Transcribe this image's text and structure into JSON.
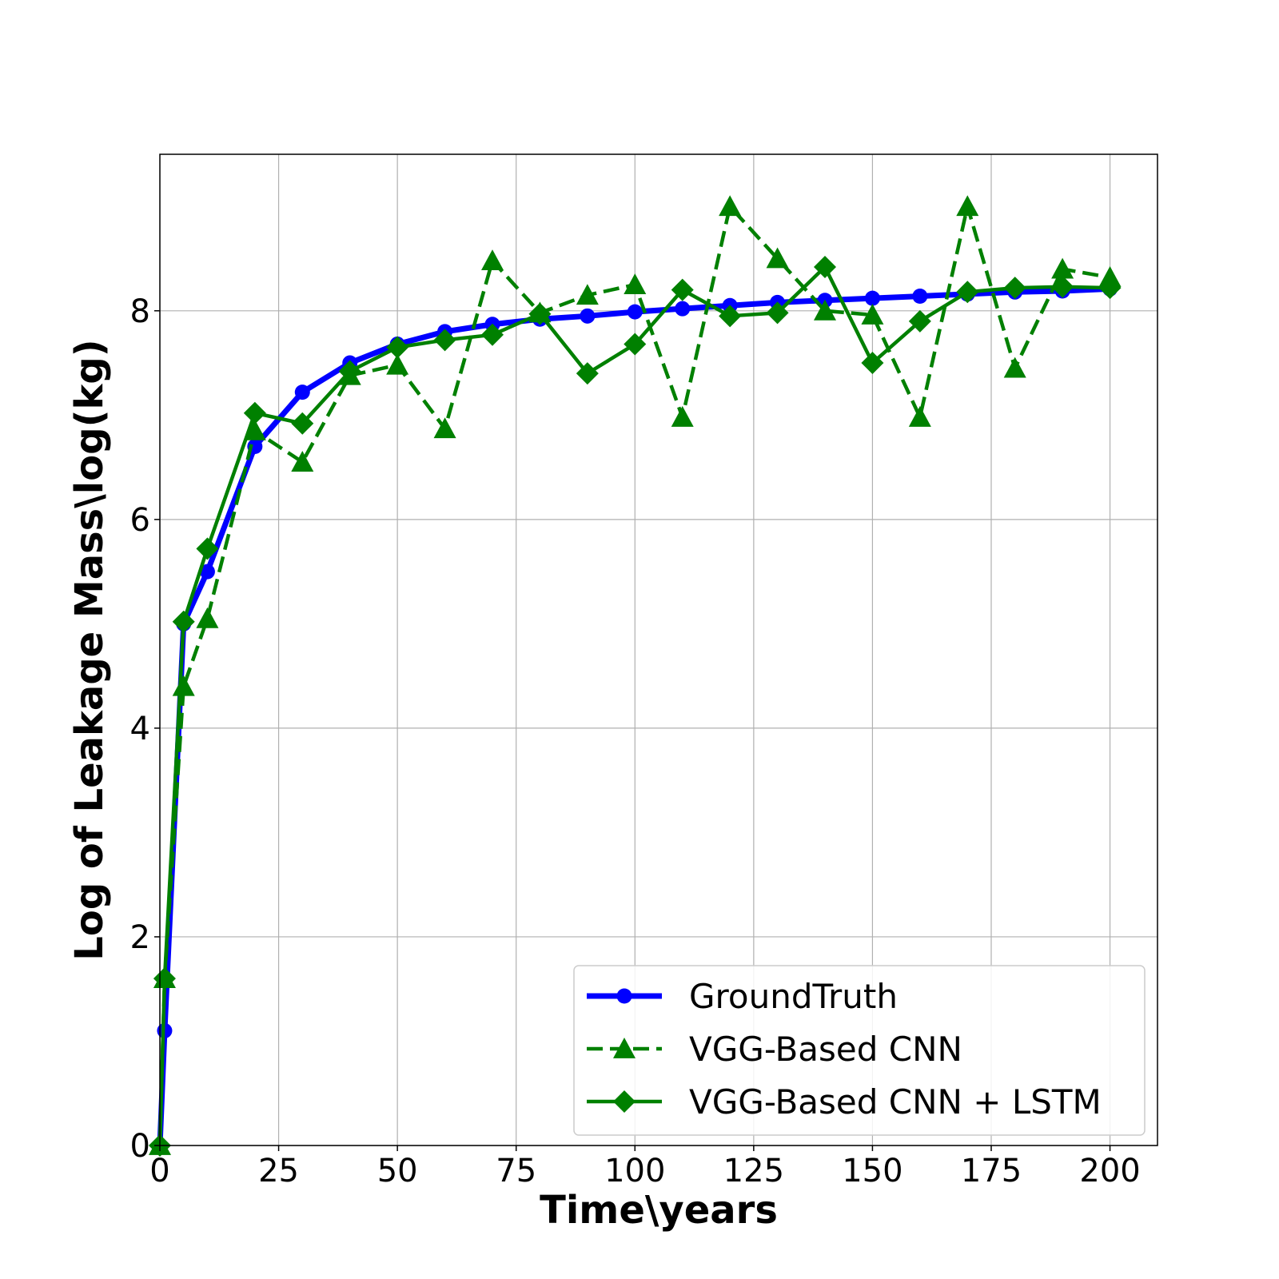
{
  "chart_data": {
    "type": "line",
    "title": "",
    "xlabel": "Time\\years",
    "ylabel": "Log of Leakage Mass\\log(kg)",
    "xlim": [
      0,
      210
    ],
    "ylim": [
      0,
      9.5
    ],
    "xticks": [
      0,
      25,
      50,
      75,
      100,
      125,
      150,
      175,
      200
    ],
    "yticks": [
      0,
      2,
      4,
      6,
      8
    ],
    "grid": true,
    "legend_position": "lower-right",
    "series": [
      {
        "name": "GroundTruth",
        "color": "#0000ff",
        "style": "solid",
        "marker": "circle",
        "x": [
          0,
          1,
          5,
          10,
          20,
          30,
          40,
          50,
          60,
          70,
          80,
          90,
          100,
          110,
          120,
          130,
          140,
          150,
          160,
          170,
          180,
          190,
          200
        ],
        "y": [
          0.0,
          1.1,
          5.0,
          5.5,
          6.7,
          7.22,
          7.5,
          7.68,
          7.8,
          7.87,
          7.92,
          7.95,
          7.99,
          8.02,
          8.05,
          8.08,
          8.1,
          8.12,
          8.14,
          8.16,
          8.18,
          8.19,
          8.21
        ]
      },
      {
        "name": "VGG-Based CNN",
        "color": "#008000",
        "style": "dashed",
        "marker": "triangle",
        "x": [
          0,
          1,
          5,
          10,
          20,
          30,
          40,
          50,
          60,
          70,
          80,
          90,
          100,
          110,
          120,
          130,
          140,
          150,
          160,
          170,
          180,
          190,
          200
        ],
        "y": [
          0.0,
          1.6,
          4.4,
          5.05,
          6.85,
          6.55,
          7.38,
          7.48,
          6.87,
          8.48,
          7.98,
          8.15,
          8.25,
          6.98,
          9.0,
          8.5,
          8.0,
          7.96,
          6.98,
          9.0,
          7.45,
          8.4,
          8.32
        ]
      },
      {
        "name": "VGG-Based CNN + LSTM",
        "color": "#008000",
        "style": "solid",
        "marker": "diamond",
        "x": [
          0,
          1,
          5,
          10,
          20,
          30,
          40,
          50,
          60,
          70,
          80,
          90,
          100,
          110,
          120,
          130,
          140,
          150,
          160,
          170,
          180,
          190,
          200
        ],
        "y": [
          0.0,
          1.6,
          5.02,
          5.72,
          7.02,
          6.92,
          7.42,
          7.65,
          7.72,
          7.77,
          7.97,
          7.4,
          7.68,
          8.2,
          7.95,
          7.98,
          8.42,
          7.5,
          7.9,
          8.18,
          8.22,
          8.23,
          8.22
        ]
      }
    ]
  }
}
